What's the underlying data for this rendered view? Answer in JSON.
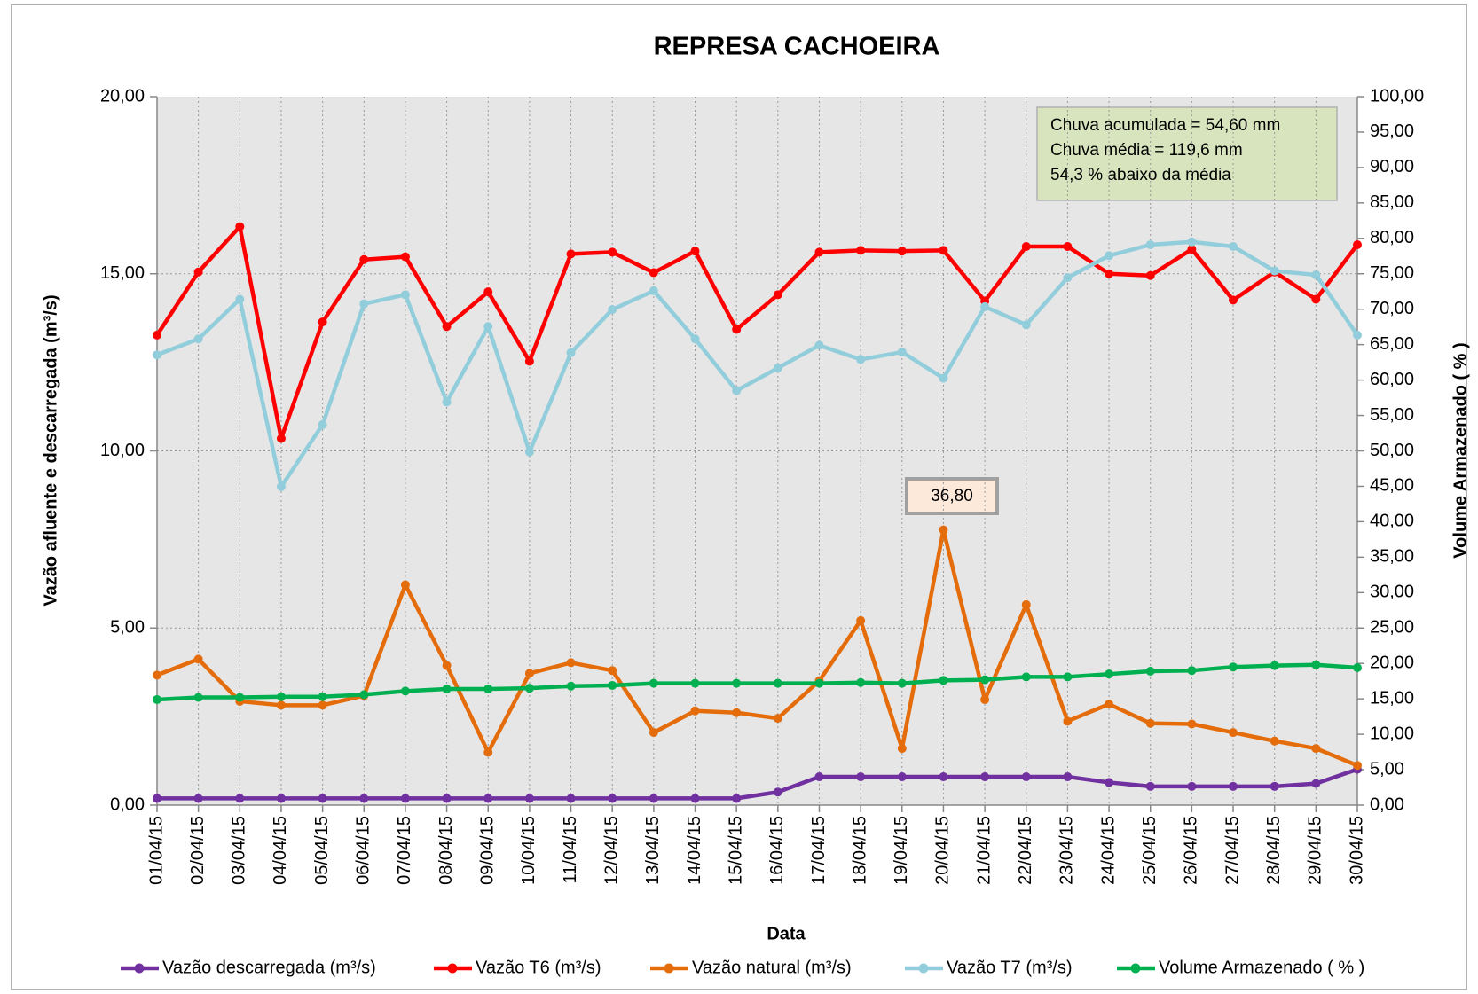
{
  "chart_data": {
    "type": "line",
    "title": "REPRESA CACHOEIRA",
    "x_label": "Data",
    "y_label": "Vazão afluente e descarregada (m³/s)",
    "y2_label": "Volume Armazenado ( % )",
    "categories": [
      "01/04/15",
      "02/04/15",
      "03/04/15",
      "04/04/15",
      "05/04/15",
      "06/04/15",
      "07/04/15",
      "08/04/15",
      "09/04/15",
      "10/04/15",
      "11/04/15",
      "12/04/15",
      "13/04/15",
      "14/04/15",
      "15/04/15",
      "16/04/15",
      "17/04/15",
      "18/04/15",
      "19/04/15",
      "20/04/15",
      "21/04/15",
      "22/04/15",
      "23/04/15",
      "24/04/15",
      "25/04/15",
      "26/04/15",
      "27/04/15",
      "28/04/15",
      "29/04/15",
      "30/04/15"
    ],
    "series": [
      {
        "name": "Vazão descarregada (m³/s)",
        "color": "#7030a0",
        "values": [
          0.19,
          0.19,
          0.19,
          0.19,
          0.19,
          0.19,
          0.19,
          0.19,
          0.19,
          0.19,
          0.19,
          0.19,
          0.19,
          0.19,
          0.19,
          0.37,
          0.8,
          0.8,
          0.8,
          0.8,
          0.8,
          0.8,
          0.8,
          0.64,
          0.53,
          0.53,
          0.53,
          0.53,
          0.61,
          1.01
        ]
      },
      {
        "name": "Vazão T6  (m³/s)",
        "color": "#ff0000",
        "values": [
          13.27,
          15.05,
          16.33,
          10.35,
          13.64,
          15.4,
          15.48,
          13.51,
          14.49,
          12.53,
          15.56,
          15.61,
          15.03,
          15.64,
          13.43,
          14.41,
          15.61,
          15.66,
          15.64,
          15.66,
          14.23,
          15.77,
          15.77,
          15.0,
          14.95,
          15.69,
          14.26,
          15.05,
          14.28,
          15.82
        ]
      },
      {
        "name": "Vazão natural (m³/s)",
        "color": "#e46c0a",
        "values": [
          3.67,
          4.12,
          2.93,
          2.82,
          2.82,
          3.09,
          6.22,
          3.94,
          1.49,
          3.72,
          4.02,
          3.8,
          2.05,
          2.66,
          2.61,
          2.45,
          3.51,
          5.21,
          1.6,
          7.77,
          2.98,
          5.66,
          2.37,
          2.85,
          2.31,
          2.29,
          2.05,
          1.81,
          1.6,
          1.12
        ]
      },
      {
        "name": "Vazão T7 (m³/s)",
        "color": "#92cddc",
        "values": [
          12.71,
          13.16,
          14.28,
          8.99,
          10.74,
          14.15,
          14.41,
          11.38,
          13.51,
          9.97,
          12.77,
          13.99,
          14.52,
          13.16,
          11.7,
          12.34,
          12.98,
          12.58,
          12.79,
          12.05,
          14.07,
          13.56,
          14.89,
          15.51,
          15.82,
          15.9,
          15.77,
          15.08,
          14.97,
          13.27
        ]
      },
      {
        "name": "Volume Armazenado ( % )",
        "color": "#00b050",
        "axis": "y2",
        "values": [
          14.9,
          15.2,
          15.2,
          15.3,
          15.3,
          15.6,
          16.1,
          16.4,
          16.4,
          16.5,
          16.8,
          16.9,
          17.2,
          17.2,
          17.2,
          17.2,
          17.2,
          17.3,
          17.2,
          17.6,
          17.7,
          18.1,
          18.1,
          18.5,
          18.9,
          19.0,
          19.5,
          19.7,
          19.8,
          19.4
        ]
      }
    ],
    "ylim": [
      0,
      20
    ],
    "yticks": [
      {
        "value": 0,
        "label": "0,00"
      },
      {
        "value": 5,
        "label": "5,00"
      },
      {
        "value": 10,
        "label": "10,00"
      },
      {
        "value": 15,
        "label": "15,00"
      },
      {
        "value": 20,
        "label": "20,00"
      }
    ],
    "y2lim": [
      0,
      100
    ],
    "y2ticks": [
      {
        "value": 0,
        "label": "0,00"
      },
      {
        "value": 5,
        "label": "5,00"
      },
      {
        "value": 10,
        "label": "10,00"
      },
      {
        "value": 15,
        "label": "15,00"
      },
      {
        "value": 20,
        "label": "20,00"
      },
      {
        "value": 25,
        "label": "25,00"
      },
      {
        "value": 30,
        "label": "30,00"
      },
      {
        "value": 35,
        "label": "35,00"
      },
      {
        "value": 40,
        "label": "40,00"
      },
      {
        "value": 45,
        "label": "45,00"
      },
      {
        "value": 50,
        "label": "50,00"
      },
      {
        "value": 55,
        "label": "55,00"
      },
      {
        "value": 60,
        "label": "60,00"
      },
      {
        "value": 65,
        "label": "65,00"
      },
      {
        "value": 70,
        "label": "70,00"
      },
      {
        "value": 75,
        "label": "75,00"
      },
      {
        "value": 80,
        "label": "80,00"
      },
      {
        "value": 85,
        "label": "85,00"
      },
      {
        "value": 90,
        "label": "90,00"
      },
      {
        "value": 95,
        "label": "95,00"
      },
      {
        "value": 100,
        "label": "100,00"
      }
    ],
    "grid": true,
    "note_lines": [
      "Chuva acumulada = 54,60 mm",
      "Chuva média = 119,6 mm",
      "54,3 % abaixo da média"
    ],
    "annotation": "36,80"
  }
}
